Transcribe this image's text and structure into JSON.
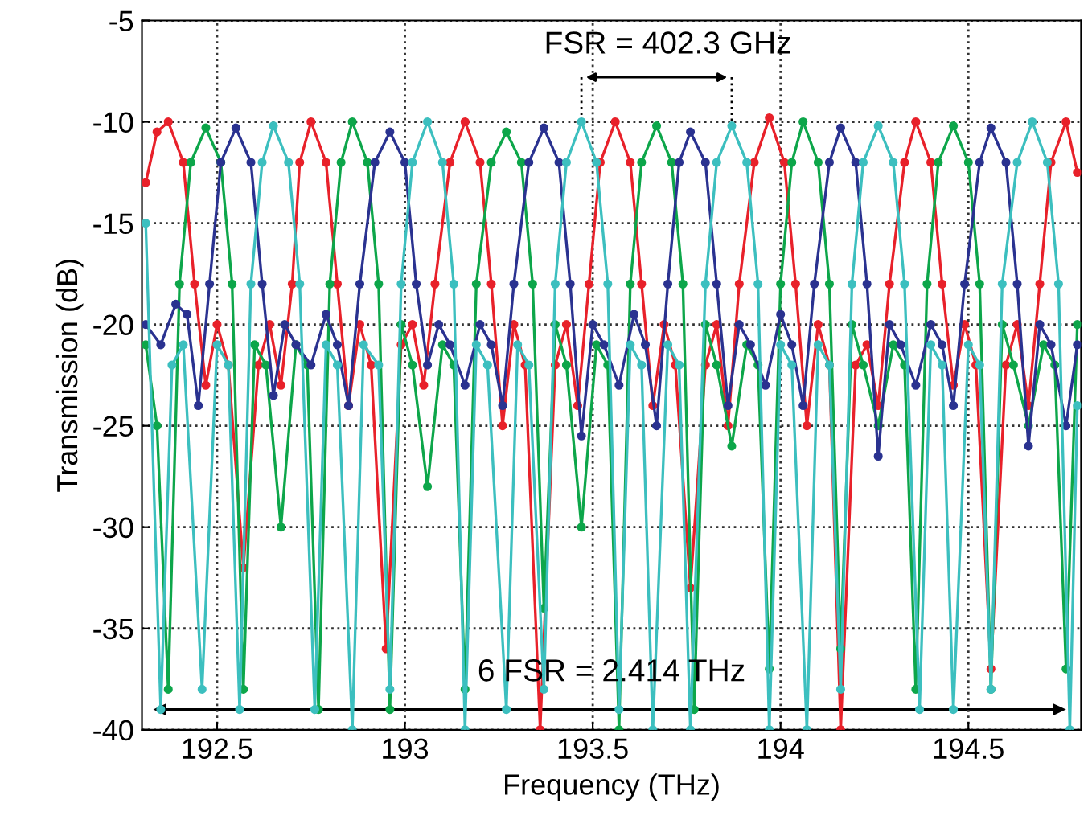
{
  "chart_data": {
    "type": "line",
    "xlabel": "Frequency (THz)",
    "ylabel": "Transmission (dB)",
    "xlim": [
      192.3,
      194.8
    ],
    "ylim": [
      -40,
      -5
    ],
    "xticks": [
      192.5,
      193,
      193.5,
      194,
      194.5
    ],
    "yticks": [
      -40,
      -35,
      -30,
      -25,
      -20,
      -15,
      -10,
      -5
    ],
    "grid": true,
    "marker": "circle",
    "line_style": "solid",
    "annotations": [
      "FSR = 402.3 GHz",
      "6 FSR = 2.414 THz"
    ],
    "series": [
      {
        "color": "#e8212a",
        "x": [
          192.31,
          192.34,
          192.37,
          192.41,
          192.44,
          192.47,
          192.5,
          192.53,
          192.57,
          192.61,
          192.64,
          192.67,
          192.7,
          192.72,
          192.75,
          192.79,
          192.82,
          192.85,
          192.88,
          192.91,
          192.95,
          192.99,
          193.02,
          193.05,
          193.08,
          193.12,
          193.16,
          193.2,
          193.23,
          193.26,
          193.29,
          193.32,
          193.36,
          193.4,
          193.43,
          193.46,
          193.49,
          193.52,
          193.56,
          193.6,
          193.63,
          193.66,
          193.69,
          193.72,
          193.76,
          193.8,
          193.83,
          193.86,
          193.89,
          193.93,
          193.97,
          194.01,
          194.04,
          194.07,
          194.1,
          194.13,
          194.16,
          194.2,
          194.23,
          194.26,
          194.29,
          194.33,
          194.36,
          194.4,
          194.43,
          194.46,
          194.49,
          194.52,
          194.56,
          194.6,
          194.63,
          194.66,
          194.69,
          194.72,
          194.76,
          194.79
        ],
        "values": [
          -13,
          -10.5,
          -10,
          -12,
          -18,
          -23,
          -20,
          -22,
          -32,
          -22,
          -20,
          -23,
          -18,
          -12,
          -10,
          -12,
          -18,
          -24,
          -20,
          -22,
          -36,
          -21,
          -20,
          -23,
          -18,
          -12,
          -10,
          -12,
          -18,
          -25,
          -20,
          -22,
          -40,
          -22,
          -20,
          -24,
          -18,
          -12,
          -10,
          -12,
          -18,
          -24,
          -20,
          -22,
          -33,
          -22,
          -20,
          -25,
          -18,
          -12,
          -9.8,
          -12,
          -18,
          -25,
          -20,
          -22,
          -40,
          -22,
          -21,
          -24,
          -18,
          -12,
          -10,
          -12,
          -18,
          -23,
          -20,
          -22,
          -37,
          -22,
          -20,
          -24,
          -18,
          -12,
          -10,
          -12.5
        ]
      },
      {
        "color": "#0da64a",
        "x": [
          192.31,
          192.34,
          192.37,
          192.4,
          192.43,
          192.47,
          192.51,
          192.54,
          192.57,
          192.6,
          192.63,
          192.67,
          192.71,
          192.74,
          192.77,
          192.8,
          192.83,
          192.86,
          192.9,
          192.93,
          192.96,
          192.99,
          193.02,
          193.06,
          193.1,
          193.13,
          193.16,
          193.19,
          193.23,
          193.27,
          193.31,
          193.34,
          193.37,
          193.4,
          193.43,
          193.47,
          193.51,
          193.54,
          193.57,
          193.6,
          193.63,
          193.67,
          193.71,
          193.74,
          193.77,
          193.8,
          193.83,
          193.87,
          193.91,
          193.94,
          193.97,
          194.0,
          194.03,
          194.06,
          194.1,
          194.13,
          194.16,
          194.19,
          194.22,
          194.26,
          194.3,
          194.33,
          194.36,
          194.39,
          194.42,
          194.46,
          194.5,
          194.53,
          194.56,
          194.59,
          194.62,
          194.66,
          194.7,
          194.73,
          194.76,
          194.79
        ],
        "values": [
          -21,
          -25,
          -38,
          -18,
          -12,
          -10.3,
          -12,
          -18,
          -38,
          -21,
          -22,
          -30,
          -21,
          -22,
          -39,
          -18,
          -12,
          -10,
          -12,
          -18,
          -39,
          -20,
          -22,
          -28,
          -21,
          -22,
          -38,
          -18,
          -12,
          -10.5,
          -12,
          -18,
          -34,
          -20,
          -22,
          -30,
          -21,
          -22,
          -40,
          -18,
          -12,
          -10.2,
          -12,
          -18,
          -39,
          -20,
          -22,
          -26,
          -21,
          -22,
          -37,
          -18,
          -12,
          -10,
          -12,
          -18,
          -36,
          -20,
          -22,
          -25,
          -21,
          -22,
          -38,
          -18,
          -12,
          -10.2,
          -12,
          -18,
          -38,
          -20,
          -22,
          -25,
          -21,
          -22,
          -37,
          -20
        ]
      },
      {
        "color": "#2a3290",
        "x": [
          192.31,
          192.35,
          192.39,
          192.42,
          192.45,
          192.48,
          192.51,
          192.55,
          192.59,
          192.62,
          192.65,
          192.68,
          192.71,
          192.75,
          192.79,
          192.82,
          192.85,
          192.88,
          192.92,
          192.96,
          193.0,
          193.03,
          193.06,
          193.09,
          193.12,
          193.16,
          193.2,
          193.23,
          193.26,
          193.29,
          193.33,
          193.37,
          193.41,
          193.44,
          193.47,
          193.5,
          193.53,
          193.57,
          193.61,
          193.64,
          193.67,
          193.7,
          193.73,
          193.76,
          193.8,
          193.83,
          193.86,
          193.89,
          193.92,
          193.96,
          194.0,
          194.03,
          194.06,
          194.09,
          194.13,
          194.16,
          194.2,
          194.23,
          194.26,
          194.29,
          194.32,
          194.36,
          194.4,
          194.43,
          194.46,
          194.49,
          194.53,
          194.56,
          194.6,
          194.63,
          194.66,
          194.69,
          194.72,
          194.76,
          194.79
        ],
        "values": [
          -20,
          -21,
          -19,
          -19.5,
          -24,
          -18,
          -12,
          -10.3,
          -12,
          -18,
          -23.5,
          -20,
          -21,
          -22,
          -19.5,
          -21,
          -24,
          -18,
          -12,
          -10.5,
          -12,
          -18,
          -22,
          -20,
          -21,
          -23,
          -20,
          -21,
          -24,
          -18,
          -12,
          -10.3,
          -12,
          -18,
          -25.5,
          -20,
          -21,
          -23,
          -19.5,
          -21,
          -25,
          -18,
          -12,
          -10.5,
          -12,
          -18,
          -24,
          -20,
          -21,
          -23,
          -19.5,
          -21,
          -24,
          -18,
          -12,
          -10.3,
          -12,
          -18,
          -26.5,
          -20,
          -21,
          -23,
          -20,
          -21,
          -24,
          -18,
          -12,
          -10.3,
          -12,
          -18,
          -26,
          -20,
          -21,
          -25,
          -21
        ]
      },
      {
        "color": "#3cbfbf",
        "x": [
          192.31,
          192.35,
          192.38,
          192.41,
          192.46,
          192.5,
          192.53,
          192.56,
          192.59,
          192.62,
          192.65,
          192.69,
          192.72,
          192.76,
          192.79,
          192.82,
          192.86,
          192.89,
          192.93,
          192.96,
          192.99,
          193.02,
          193.06,
          193.1,
          193.13,
          193.16,
          193.19,
          193.22,
          193.27,
          193.3,
          193.33,
          193.37,
          193.4,
          193.43,
          193.47,
          193.51,
          193.54,
          193.57,
          193.6,
          193.63,
          193.66,
          193.7,
          193.73,
          193.76,
          193.8,
          193.83,
          193.87,
          193.91,
          193.94,
          193.97,
          194.0,
          194.03,
          194.07,
          194.1,
          194.13,
          194.16,
          194.19,
          194.22,
          194.26,
          194.3,
          194.33,
          194.37,
          194.4,
          194.43,
          194.46,
          194.5,
          194.53,
          194.56,
          194.59,
          194.63,
          194.67,
          194.71,
          194.74,
          194.77,
          194.79
        ],
        "values": [
          -15,
          -39,
          -22,
          -21,
          -38,
          -21,
          -22,
          -39,
          -18,
          -12,
          -10.2,
          -12,
          -18,
          -39,
          -21,
          -22,
          -40,
          -21,
          -22,
          -38,
          -18,
          -12,
          -10,
          -12,
          -18,
          -40,
          -21,
          -22,
          -39,
          -21,
          -22,
          -38,
          -18,
          -12,
          -10,
          -12,
          -18,
          -39,
          -21,
          -22,
          -40,
          -21,
          -22,
          -40,
          -18,
          -12,
          -10.2,
          -12,
          -18,
          -40,
          -21,
          -22,
          -40,
          -21,
          -22,
          -38,
          -18,
          -12,
          -10.2,
          -12,
          -18,
          -39,
          -21,
          -22,
          -39,
          -21,
          -22,
          -38,
          -18,
          -12,
          -10,
          -12,
          -18,
          -40,
          -24
        ]
      }
    ]
  }
}
